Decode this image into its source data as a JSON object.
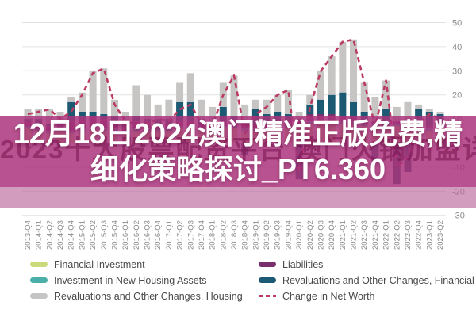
{
  "overlay": {
    "headline_line1": "12月18日2024澳门精准正版免费,精",
    "headline_line2": "细化策略探讨_PT6.360",
    "watermark": "2023十大股票配资平台 澳门火锅加盟详情攻略"
  },
  "chart_data": {
    "type": "bar",
    "subtype": "stacked-bars-with-dashed-line",
    "title": "",
    "xlabel": "",
    "ylabel": "€ Billion",
    "ylim": [
      -30,
      50
    ],
    "yticks": [
      50,
      40,
      30,
      20,
      10,
      0,
      -10,
      -20,
      -30
    ],
    "grid": true,
    "legend_position": "bottom",
    "categories": [
      "2013-Q4",
      "2014-Q1",
      "2014-Q2",
      "2014-Q3",
      "2014-Q4",
      "2015-Q1",
      "2015-Q2",
      "2015-Q3",
      "2015-Q4",
      "2016-Q1",
      "2016-Q2",
      "2016-Q3",
      "2016-Q4",
      "2017-Q1",
      "2017-Q2",
      "2017-Q3",
      "2017-Q4",
      "2018-Q1",
      "2018-Q2",
      "2018-Q3",
      "2018-Q4",
      "2019-Q1",
      "2019-Q2",
      "2019-Q3",
      "2019-Q4",
      "2020-Q1",
      "2020-Q2",
      "2020-Q3",
      "2020-Q4",
      "2021-Q1",
      "2021-Q2",
      "2021-Q3",
      "2021-Q4",
      "2022-Q1",
      "2022-Q2",
      "2022-Q3",
      "2022-Q4",
      "2023-Q1",
      "2023-Q2"
    ],
    "series": [
      {
        "name": "Financial Investment",
        "color": "#ccd97b",
        "values": [
          6,
          5,
          4,
          5,
          4,
          5,
          6,
          5,
          5,
          4,
          5,
          5,
          5,
          5,
          6,
          6,
          5,
          5,
          6,
          6,
          5,
          5,
          5,
          5,
          6,
          7,
          8,
          8,
          8,
          8,
          8,
          7,
          7,
          7,
          7,
          6,
          5,
          5,
          5
        ]
      },
      {
        "name": "Investment in New Housing Assets",
        "color": "#4aafa9",
        "values": [
          1,
          1,
          1,
          1,
          1,
          1,
          1,
          1,
          1,
          1,
          1,
          1,
          1,
          1,
          1,
          1,
          1,
          1,
          1,
          1,
          1,
          1,
          1,
          1,
          1,
          1,
          1,
          1,
          1,
          1,
          1,
          1,
          1,
          1,
          1,
          1,
          1,
          1,
          1
        ]
      },
      {
        "name": "Liabilities",
        "color": "#7a2f6d",
        "values": [
          2,
          2,
          2,
          2,
          4,
          4,
          4,
          4,
          3,
          3,
          3,
          3,
          2,
          2,
          2,
          2,
          2,
          2,
          2,
          2,
          2,
          2,
          2,
          2,
          2,
          2,
          3,
          3,
          3,
          2,
          2,
          1,
          1,
          1,
          1,
          1,
          1,
          1,
          1
        ]
      },
      {
        "name": "Revaluations and Other Changes, Financial",
        "color": "#1b5a72",
        "values": [
          1,
          2,
          1,
          -2,
          8,
          3,
          2,
          2,
          2,
          1,
          2,
          1,
          2,
          2,
          8,
          8,
          2,
          1,
          6,
          2,
          -5,
          6,
          4,
          5,
          3,
          -15,
          4,
          6,
          8,
          10,
          6,
          4,
          -8,
          5,
          -17,
          -12,
          7,
          6,
          5
        ]
      },
      {
        "name": "Revaluations and Other Changes, Housing",
        "color": "#c6c5c4",
        "values": [
          4,
          4,
          6,
          5,
          2,
          8,
          17,
          19,
          7,
          4,
          13,
          10,
          6,
          8,
          8,
          12,
          8,
          6,
          10,
          17,
          8,
          4,
          6,
          7,
          10,
          3,
          4,
          12,
          16,
          21,
          26,
          12,
          10,
          12,
          6,
          9,
          2,
          1,
          1
        ]
      }
    ],
    "line_series": {
      "name": "Change in Net Worth",
      "color": "#bb3a62",
      "style": "dashed",
      "values": [
        12,
        13,
        14,
        10,
        13,
        20,
        29,
        31,
        16,
        9,
        8,
        8,
        10,
        9,
        14,
        16,
        8,
        7,
        20,
        28,
        4,
        12,
        15,
        20,
        22,
        -12,
        15,
        30,
        36,
        42,
        43,
        25,
        7,
        26,
        -10,
        -6,
        8,
        12,
        10
      ]
    }
  },
  "legend": {
    "left": [
      {
        "label": "Financial Investment",
        "swatch": "solid",
        "color": "#ccd97b"
      },
      {
        "label": "Investment in New Housing Assets",
        "swatch": "solid",
        "color": "#4aafa9"
      },
      {
        "label": "Revaluations and Other Changes, Housing",
        "swatch": "solid",
        "color": "#c6c5c4"
      }
    ],
    "right": [
      {
        "label": "Liabilities",
        "swatch": "solid",
        "color": "#7a2f6d"
      },
      {
        "label": "Revaluations and Other Changes, Financial",
        "swatch": "solid",
        "color": "#1b5a72"
      },
      {
        "label": "Change in Net Worth",
        "swatch": "dashed-line",
        "color": "#bb3a62"
      }
    ]
  },
  "axis_text_color": "#8a8a8a",
  "gridline_color": "#e2e2e2"
}
